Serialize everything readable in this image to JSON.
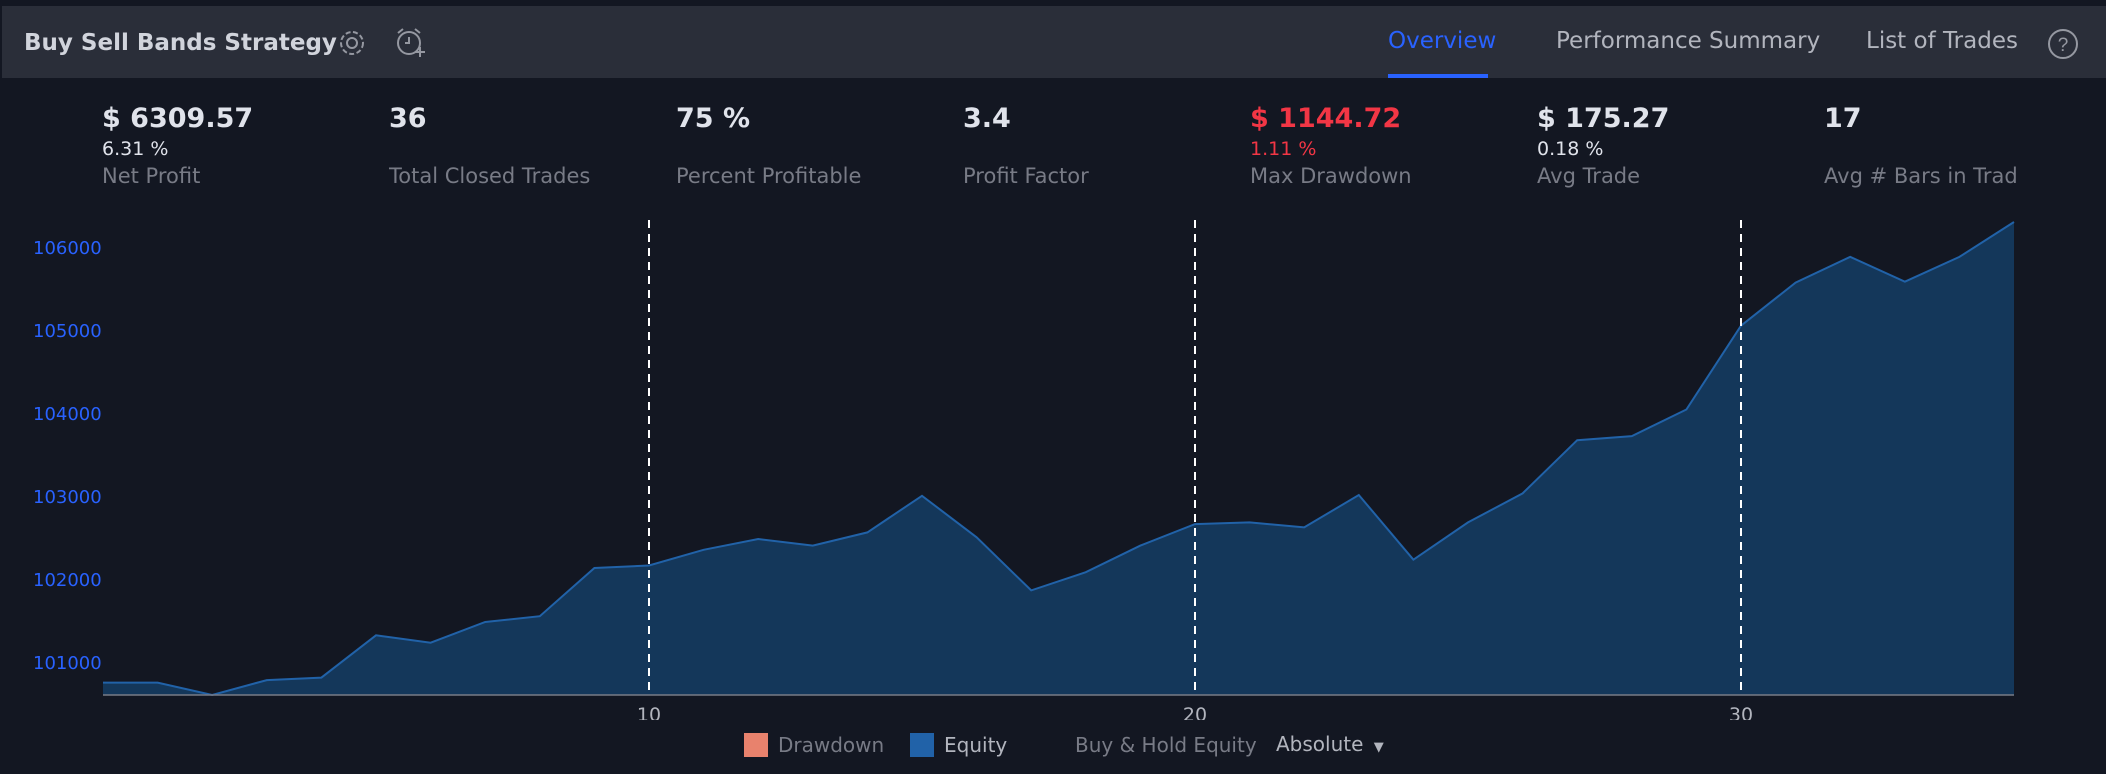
{
  "header": {
    "title": "Buy Sell Bands Strategy",
    "tabs": [
      {
        "label": "Overview",
        "active": true
      },
      {
        "label": "Performance Summary",
        "active": false
      },
      {
        "label": "List of Trades",
        "active": false
      }
    ]
  },
  "stats": [
    {
      "value": "$ 6309.57",
      "pct": "6.31 %",
      "label": "Net Profit"
    },
    {
      "value": "36",
      "pct": "",
      "label": "Total Closed Trades"
    },
    {
      "value": "75 %",
      "pct": "",
      "label": "Percent Profitable"
    },
    {
      "value": "3.4",
      "pct": "",
      "label": "Profit Factor"
    },
    {
      "value": "$ 1144.72",
      "pct": "1.11 %",
      "label": "Max Drawdown",
      "highlight": "negative"
    },
    {
      "value": "$ 175.27",
      "pct": "0.18 %",
      "label": "Avg Trade"
    },
    {
      "value": "17",
      "pct": "",
      "label": "Avg # Bars in Trades"
    }
  ],
  "legend": {
    "drawdown": "Drawdown",
    "equity": "Equity",
    "buy_hold": "Buy & Hold Equity",
    "mode": "Absolute"
  },
  "colors": {
    "accent": "#2962ff",
    "equity": "#2162a8",
    "drawdown": "#e8826d",
    "negative": "#f23645"
  },
  "chart_data": {
    "type": "area",
    "x": [
      0,
      1,
      2,
      3,
      4,
      5,
      6,
      7,
      8,
      9,
      10,
      11,
      12,
      13,
      14,
      15,
      16,
      17,
      18,
      19,
      20,
      21,
      22,
      23,
      24,
      25,
      26,
      27,
      28,
      29,
      30,
      31,
      32,
      33,
      34,
      35
    ],
    "series": [
      {
        "name": "Equity",
        "values": [
          100750,
          100750,
          100600,
          100780,
          100810,
          101320,
          101230,
          101480,
          101550,
          102130,
          102160,
          102350,
          102480,
          102400,
          102560,
          103000,
          102500,
          101860,
          102080,
          102400,
          102660,
          102680,
          102620,
          103010,
          102230,
          102680,
          103030,
          103670,
          103720,
          104040,
          105050,
          105570,
          105880,
          105580,
          105880,
          106300
        ]
      }
    ],
    "xticks": [
      10,
      20,
      30
    ],
    "yticks": [
      101000,
      102000,
      103000,
      104000,
      105000,
      106000
    ],
    "ylim": [
      100600,
      106300
    ],
    "xlim": [
      0,
      35
    ],
    "vertical_dashed_lines": [
      10,
      20,
      30
    ]
  }
}
